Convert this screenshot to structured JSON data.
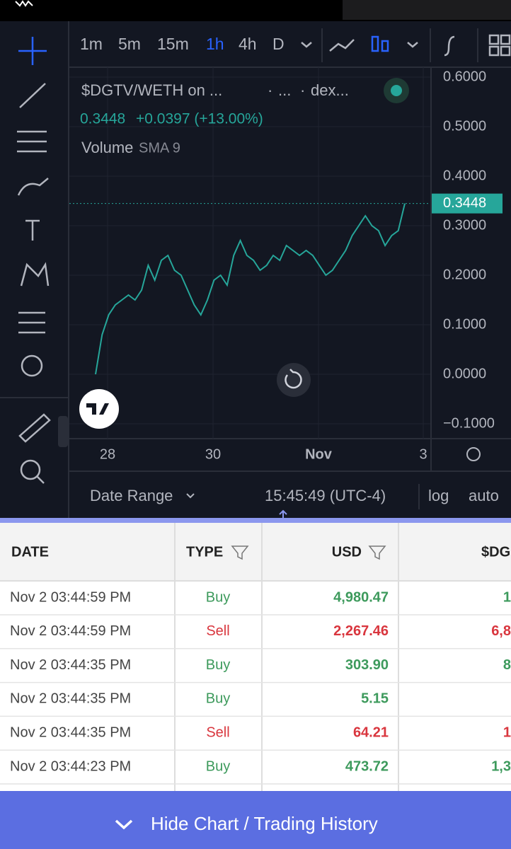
{
  "toolbar": {
    "intervals": [
      "1m",
      "5m",
      "15m",
      "1h",
      "4h",
      "D"
    ],
    "active_interval": 3
  },
  "legend": {
    "symbol": "$DGTV/WETH on ...",
    "sep1": "·",
    "mid": "...",
    "sep2": "·",
    "source": "dex...",
    "price": "0.3448",
    "change": "+0.0397 (+13.00%)",
    "indicator": "Volume",
    "indicator_args": "SMA 9"
  },
  "chart": {
    "type": "line",
    "color": "#26a69a",
    "ylim": [
      -0.13,
      0.62
    ],
    "yticks": [
      {
        "value": 0.6,
        "label": "0.6000"
      },
      {
        "value": 0.5,
        "label": "0.5000"
      },
      {
        "value": 0.4,
        "label": "0.4000"
      },
      {
        "value": 0.3,
        "label": "0.3000"
      },
      {
        "value": 0.2,
        "label": "0.2000"
      },
      {
        "value": 0.1,
        "label": "0.1000"
      },
      {
        "value": 0,
        "label": "0.0000"
      },
      {
        "value": -0.1,
        "label": "−0.1000"
      }
    ],
    "last_price": {
      "value": 0.3448,
      "label": "0.3448"
    },
    "xticks": [
      "28",
      "30",
      "Nov",
      "3"
    ],
    "values": [
      0.0,
      0.08,
      0.12,
      0.14,
      0.15,
      0.16,
      0.15,
      0.17,
      0.22,
      0.19,
      0.23,
      0.24,
      0.21,
      0.2,
      0.17,
      0.14,
      0.12,
      0.15,
      0.19,
      0.2,
      0.18,
      0.24,
      0.27,
      0.24,
      0.23,
      0.21,
      0.22,
      0.24,
      0.23,
      0.26,
      0.25,
      0.24,
      0.25,
      0.24,
      0.22,
      0.2,
      0.21,
      0.23,
      0.25,
      0.28,
      0.3,
      0.32,
      0.3,
      0.29,
      0.26,
      0.28,
      0.29,
      0.3448
    ]
  },
  "footer": {
    "date_range": "Date Range",
    "time": "15:45:49 (UTC-4)",
    "log": "log",
    "auto": "auto"
  },
  "table": {
    "headers": [
      "DATE",
      "TYPE",
      "USD",
      "$DG"
    ],
    "rows": [
      [
        "Nov 2 03:44:59 PM",
        "Buy",
        "4,980.47",
        "1"
      ],
      [
        "Nov 2 03:44:59 PM",
        "Sell",
        "2,267.46",
        "6,8"
      ],
      [
        "Nov 2 03:44:35 PM",
        "Buy",
        "303.90",
        "8"
      ],
      [
        "Nov 2 03:44:35 PM",
        "Buy",
        "5.15"
      ],
      [
        "Nov 2 03:44:35 PM",
        "Sell",
        "64.21",
        "1"
      ],
      [
        "Nov 2 03:44:23 PM",
        "Buy",
        "473.72",
        "1,3"
      ]
    ]
  },
  "button": "Hide Chart / Trading History"
}
